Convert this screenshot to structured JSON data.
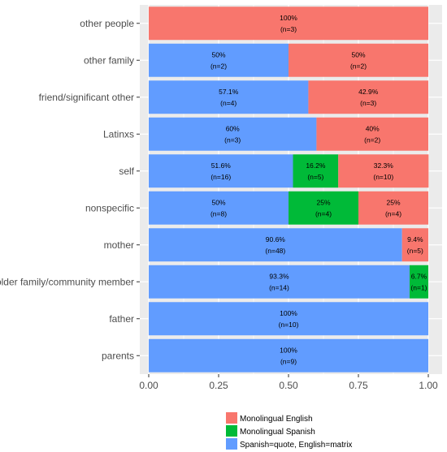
{
  "chart_data": {
    "type": "bar",
    "orientation": "horizontal",
    "stacked": true,
    "categories": [
      "other people",
      "other family",
      "friend/significant other",
      "Latinxs",
      "self",
      "nonspecific",
      "mother",
      "older family/community member",
      "father",
      "parents"
    ],
    "xlim": [
      0,
      1
    ],
    "x_ticks": [
      "0.00",
      "0.25",
      "0.50",
      "0.75",
      "1.00"
    ],
    "grid": true,
    "legend_position": "bottom",
    "series": [
      {
        "name": "Spanish=quote, English=matrix",
        "color": "#619CFF",
        "values": [
          0,
          0.5,
          0.571,
          0.6,
          0.516,
          0.5,
          0.906,
          0.933,
          1.0,
          1.0
        ],
        "labels": [
          "",
          "50%",
          "57.1%",
          "60%",
          "51.6%",
          "50%",
          "90.6%",
          "93.3%",
          "100%",
          "100%"
        ],
        "counts": [
          "",
          "(n=2)",
          "(n=4)",
          "(n=3)",
          "(n=16)",
          "(n=8)",
          "(n=48)",
          "(n=14)",
          "(n=10)",
          "(n=9)"
        ]
      },
      {
        "name": "Monolingual Spanish",
        "color": "#00BA38",
        "values": [
          0,
          0,
          0,
          0,
          0.162,
          0.25,
          0,
          0.067,
          0,
          0
        ],
        "labels": [
          "",
          "",
          "",
          "",
          "16.2%",
          "25%",
          "",
          "6.7%",
          "",
          ""
        ],
        "counts": [
          "",
          "",
          "",
          "",
          "(n=5)",
          "(n=4)",
          "",
          "(n=1)",
          "",
          ""
        ]
      },
      {
        "name": "Monolingual English",
        "color": "#F8766D",
        "values": [
          1.0,
          0.5,
          0.429,
          0.4,
          0.323,
          0.25,
          0.094,
          0,
          0,
          0
        ],
        "labels": [
          "100%",
          "50%",
          "42.9%",
          "40%",
          "32.3%",
          "25%",
          "9.4%",
          "",
          "",
          ""
        ],
        "counts": [
          "(n=3)",
          "(n=2)",
          "(n=3)",
          "(n=2)",
          "(n=10)",
          "(n=4)",
          "(n=5)",
          "",
          "",
          ""
        ]
      }
    ],
    "legend_order": [
      "Monolingual English",
      "Monolingual Spanish",
      "Spanish=quote, English=matrix"
    ]
  }
}
